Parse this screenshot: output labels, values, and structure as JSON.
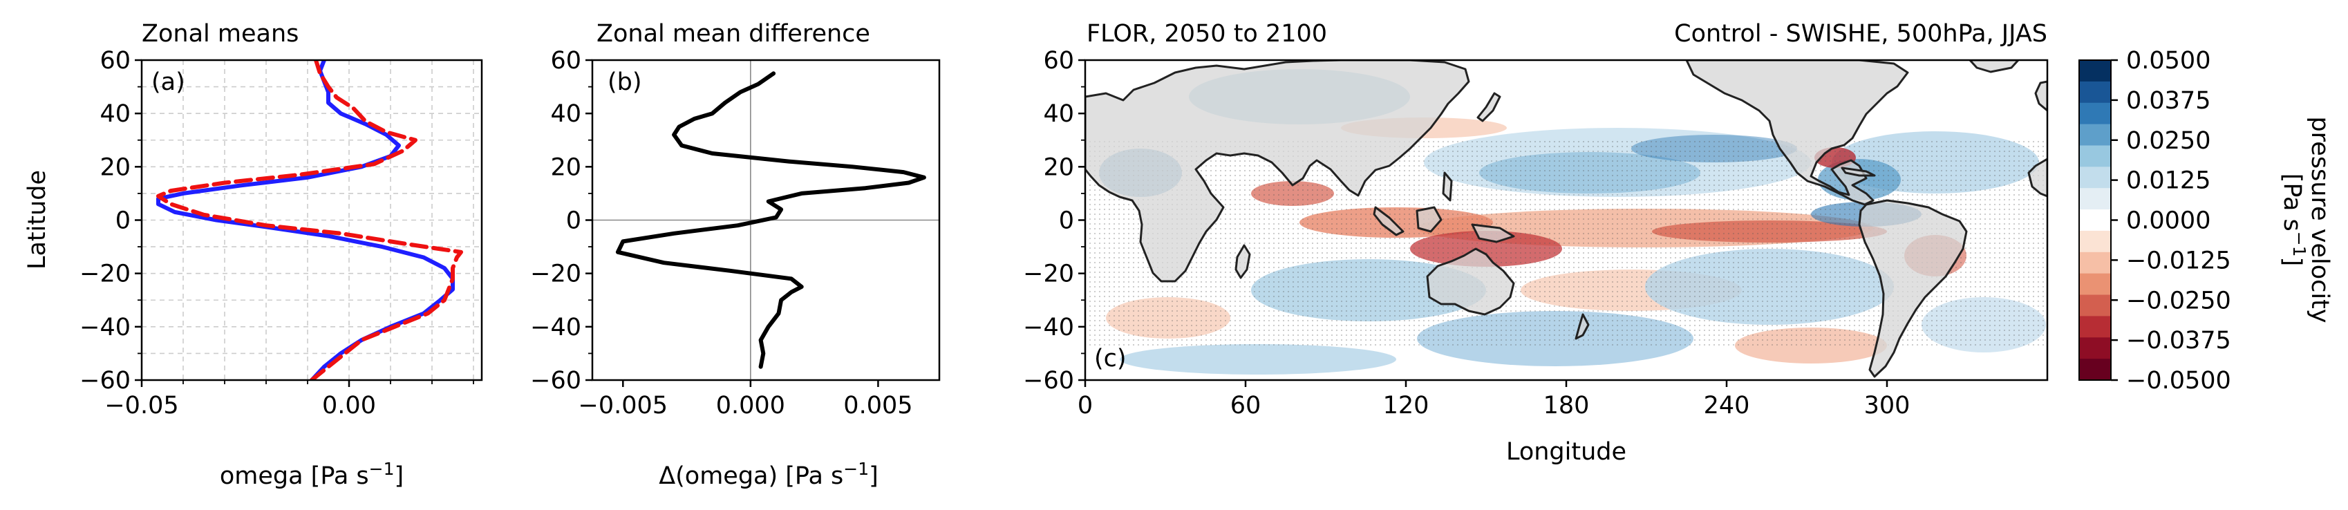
{
  "panel_a": {
    "title": "Zonal means",
    "panel_label": "(a)",
    "ylabel": "Latitude",
    "xlabel_main": "omega [Pa s",
    "xlabel_sup": "−1",
    "xlabel_close": "]"
  },
  "panel_b": {
    "title": "Zonal mean difference",
    "panel_label": "(b)",
    "xlabel_main": "Δ(omega) [Pa s",
    "xlabel_sup": "−1",
    "xlabel_close": "]"
  },
  "panel_c": {
    "title_left": "FLOR, 2050 to 2100",
    "title_right": "Control - SWISHE, 500hPa, JJAS",
    "panel_label": "(c)",
    "xlabel": "Longitude"
  },
  "colorbar": {
    "label_line1": "pressure velocity",
    "label_line2_main": "[Pa s",
    "label_line2_sup": "−1",
    "label_line2_close": "]",
    "ticks": [
      "0.0500",
      "0.0375",
      "0.0250",
      "0.0125",
      "0.0000",
      "−0.0125",
      "−0.0250",
      "−0.0375",
      "−0.0500"
    ],
    "tick_values": [
      0.05,
      0.0375,
      0.025,
      0.0125,
      0,
      -0.0125,
      -0.025,
      -0.0375,
      -0.05
    ],
    "colors_top_to_bottom": [
      "#053061",
      "#195696",
      "#2f79b5",
      "#5e9fca",
      "#98c8e0",
      "#c2ddec",
      "#e4eef4",
      "#ffffff",
      "#fbe3d4",
      "#f6bfa6",
      "#ea9273",
      "#d35f4f",
      "#b72d34",
      "#8e0d25",
      "#67001f"
    ]
  },
  "chart_data": [
    {
      "type": "line",
      "panel": "a",
      "ylim": [
        -60,
        60
      ],
      "xlim": [
        -0.05,
        0.032
      ],
      "xticks": [
        "−0.05",
        "0.00"
      ],
      "xtick_values": [
        -0.05,
        0.0
      ],
      "yticks": [
        "−60",
        "−40",
        "−20",
        "0",
        "20",
        "40",
        "60"
      ],
      "ytick_values": [
        -60,
        -40,
        -20,
        0,
        20,
        40,
        60
      ],
      "grid": true,
      "series": [
        {
          "color": "#1f1fff",
          "style": "solid",
          "points": [
            [
              -0.009,
              -60
            ],
            [
              -0.006,
              -55
            ],
            [
              -0.002,
              -50
            ],
            [
              0.003,
              -45
            ],
            [
              0.01,
              -40
            ],
            [
              0.018,
              -35
            ],
            [
              0.022,
              -30
            ],
            [
              0.025,
              -26
            ],
            [
              0.025,
              -22
            ],
            [
              0.023,
              -18
            ],
            [
              0.018,
              -14
            ],
            [
              0.008,
              -10
            ],
            [
              -0.005,
              -6
            ],
            [
              -0.018,
              -3
            ],
            [
              -0.032,
              0
            ],
            [
              -0.042,
              3
            ],
            [
              -0.046,
              6
            ],
            [
              -0.046,
              8
            ],
            [
              -0.04,
              10
            ],
            [
              -0.026,
              13
            ],
            [
              -0.01,
              16
            ],
            [
              0.003,
              20
            ],
            [
              0.01,
              24
            ],
            [
              0.012,
              28
            ],
            [
              0.009,
              32
            ],
            [
              0.004,
              36
            ],
            [
              -0.002,
              40
            ],
            [
              -0.005,
              44
            ],
            [
              -0.005,
              48
            ],
            [
              -0.006,
              52
            ],
            [
              -0.007,
              56
            ],
            [
              -0.006,
              60
            ]
          ]
        },
        {
          "color": "#ee1111",
          "style": "dashed",
          "points": [
            [
              -0.009,
              -60
            ],
            [
              -0.005,
              -55
            ],
            [
              -0.001,
              -50
            ],
            [
              0.003,
              -45
            ],
            [
              0.011,
              -40
            ],
            [
              0.019,
              -35
            ],
            [
              0.023,
              -30
            ],
            [
              0.024,
              -26
            ],
            [
              0.025,
              -22
            ],
            [
              0.025,
              -18
            ],
            [
              0.026,
              -14
            ],
            [
              0.027,
              -12
            ],
            [
              0.014,
              -9
            ],
            [
              -0.002,
              -5
            ],
            [
              -0.02,
              -2
            ],
            [
              -0.035,
              2
            ],
            [
              -0.043,
              6
            ],
            [
              -0.046,
              9
            ],
            [
              -0.043,
              11
            ],
            [
              -0.03,
              14
            ],
            [
              -0.012,
              17
            ],
            [
              0.006,
              21
            ],
            [
              0.013,
              26
            ],
            [
              0.016,
              30
            ],
            [
              0.009,
              33
            ],
            [
              0.004,
              37
            ],
            [
              0.001,
              42
            ],
            [
              -0.003,
              46
            ],
            [
              -0.005,
              50
            ],
            [
              -0.007,
              55
            ],
            [
              -0.008,
              60
            ]
          ]
        }
      ]
    },
    {
      "type": "line",
      "panel": "b",
      "ylim": [
        -60,
        60
      ],
      "xlim": [
        -0.0062,
        0.0074
      ],
      "xticks": [
        "−0.005",
        "0.000",
        "0.005"
      ],
      "xtick_values": [
        -0.005,
        0.0,
        0.005
      ],
      "yticks": [
        "−60",
        "−40",
        "−20",
        "0",
        "20",
        "40",
        "60"
      ],
      "ytick_values": [
        -60,
        -40,
        -20,
        0,
        20,
        40,
        60
      ],
      "grid": false,
      "zero_lines": true,
      "series": [
        {
          "color": "#000000",
          "style": "solid",
          "points": [
            [
              0.0004,
              -55
            ],
            [
              0.0005,
              -50
            ],
            [
              0.0004,
              -45
            ],
            [
              0.0007,
              -40
            ],
            [
              0.0011,
              -35
            ],
            [
              0.0012,
              -30
            ],
            [
              0.0016,
              -27
            ],
            [
              0.002,
              -25
            ],
            [
              0.0016,
              -22
            ],
            [
              -0.0008,
              -19
            ],
            [
              -0.0034,
              -16
            ],
            [
              -0.0052,
              -12
            ],
            [
              -0.005,
              -8
            ],
            [
              -0.003,
              -5
            ],
            [
              -0.0005,
              -2
            ],
            [
              0.001,
              1
            ],
            [
              0.0012,
              4
            ],
            [
              0.0007,
              7
            ],
            [
              0.002,
              10
            ],
            [
              0.0045,
              12
            ],
            [
              0.0062,
              14
            ],
            [
              0.0068,
              16
            ],
            [
              0.006,
              18
            ],
            [
              0.004,
              20
            ],
            [
              0.0015,
              22
            ],
            [
              -0.0015,
              25
            ],
            [
              -0.0027,
              28
            ],
            [
              -0.003,
              32
            ],
            [
              -0.0028,
              35
            ],
            [
              -0.0022,
              38
            ],
            [
              -0.0015,
              40
            ],
            [
              -0.001,
              44
            ],
            [
              -0.0004,
              48
            ],
            [
              0.0003,
              51
            ],
            [
              0.0009,
              55
            ]
          ]
        }
      ]
    },
    {
      "type": "heatmap",
      "panel": "c",
      "xlim": [
        0,
        360
      ],
      "ylim": [
        -60,
        60
      ],
      "xticks": [
        "0",
        "60",
        "120",
        "180",
        "240",
        "300"
      ],
      "xtick_values": [
        0,
        60,
        120,
        180,
        240,
        300
      ],
      "yticks": [
        "−60",
        "−40",
        "−20",
        "0",
        "20",
        "40",
        "60"
      ],
      "ytick_values": [
        -60,
        -40,
        -20,
        0,
        20,
        40,
        60
      ],
      "colorbar_range": [
        -0.05,
        0.05
      ]
    }
  ]
}
